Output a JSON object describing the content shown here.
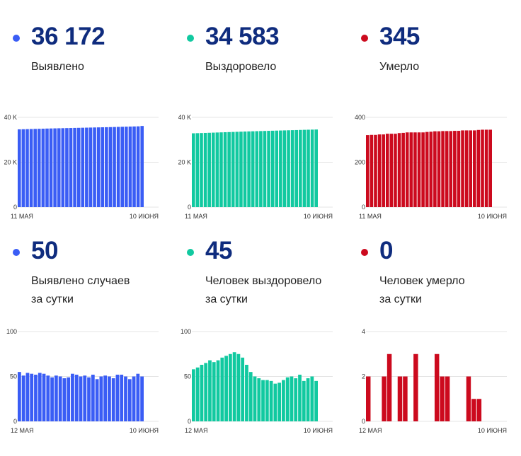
{
  "colors": {
    "blue": "#3a5df5",
    "green": "#11c9a0",
    "red": "#cc0a1e",
    "number": "#0f2c7e"
  },
  "panels": [
    {
      "value": "36 172",
      "label_line1": "Выявлено",
      "label_line2": "",
      "color": "#3a5df5",
      "chart_data": {
        "type": "bar",
        "yticks": [
          "40 K",
          "20 K",
          "0"
        ],
        "ylim": [
          0,
          40000
        ],
        "xlabel_start": "11 МАЯ",
        "xlabel_end": "10 ИЮНЯ",
        "values": [
          34660,
          34710,
          34760,
          34810,
          34860,
          34910,
          34960,
          35010,
          35060,
          35100,
          35140,
          35180,
          35220,
          35260,
          35300,
          35340,
          35380,
          35420,
          35460,
          35500,
          35540,
          35580,
          35620,
          35660,
          35700,
          35750,
          35800,
          35850,
          35900,
          35950,
          36000,
          36172
        ]
      }
    },
    {
      "value": "34 583",
      "label_line1": "Выздоровело",
      "label_line2": "",
      "color": "#11c9a0",
      "chart_data": {
        "type": "bar",
        "yticks": [
          "40 K",
          "20 K",
          "0"
        ],
        "ylim": [
          0,
          40000
        ],
        "xlabel_start": "11 МАЯ",
        "xlabel_end": "10 ИЮНЯ",
        "values": [
          32900,
          32960,
          33020,
          33080,
          33140,
          33200,
          33260,
          33320,
          33380,
          33440,
          33500,
          33560,
          33620,
          33680,
          33740,
          33800,
          33850,
          33900,
          33950,
          34000,
          34050,
          34100,
          34150,
          34200,
          34250,
          34300,
          34350,
          34400,
          34450,
          34500,
          34540,
          34583
        ]
      }
    },
    {
      "value": "345",
      "label_line1": "Умерло",
      "label_line2": "",
      "color": "#cc0a1e",
      "chart_data": {
        "type": "bar",
        "yticks": [
          "400",
          "200",
          "0"
        ],
        "ylim": [
          0,
          400
        ],
        "xlabel_start": "11 МАЯ",
        "xlabel_end": "10 ИЮНЯ",
        "values": [
          321,
          322,
          322,
          324,
          324,
          327,
          327,
          327,
          330,
          331,
          333,
          333,
          333,
          333,
          333,
          335,
          336,
          338,
          338,
          339,
          339,
          339,
          340,
          340,
          342,
          342,
          342,
          342,
          344,
          345,
          345,
          345
        ]
      }
    },
    {
      "value": "50",
      "label_line1": "Выявлено случаев",
      "label_line2": "за сутки",
      "color": "#3a5df5",
      "chart_data": {
        "type": "bar",
        "yticks": [
          "100",
          "50",
          "0"
        ],
        "ylim": [
          0,
          100
        ],
        "xlabel_start": "12 МАЯ",
        "xlabel_end": "10 ИЮНЯ",
        "values": [
          55,
          51,
          54,
          53,
          52,
          54,
          53,
          51,
          49,
          51,
          50,
          48,
          49,
          53,
          52,
          50,
          51,
          49,
          52,
          47,
          50,
          51,
          50,
          48,
          52,
          52,
          50,
          47,
          50,
          53,
          50
        ]
      }
    },
    {
      "value": "45",
      "label_line1": "Человек выздоровело",
      "label_line2": "за сутки",
      "color": "#11c9a0",
      "chart_data": {
        "type": "bar",
        "yticks": [
          "100",
          "50",
          "0"
        ],
        "ylim": [
          0,
          100
        ],
        "xlabel_start": "12 МАЯ",
        "xlabel_end": "10 ИЮНЯ",
        "values": [
          58,
          60,
          63,
          65,
          68,
          66,
          68,
          71,
          73,
          75,
          77,
          75,
          71,
          63,
          55,
          50,
          48,
          46,
          46,
          45,
          42,
          43,
          46,
          49,
          50,
          48,
          52,
          45,
          48,
          50,
          45
        ]
      }
    },
    {
      "value": "0",
      "label_line1": "Человек умерло",
      "label_line2": "за сутки",
      "color": "#cc0a1e",
      "chart_data": {
        "type": "bar",
        "yticks": [
          "4",
          "2",
          "0"
        ],
        "ylim": [
          0,
          4
        ],
        "xlabel_start": "12 МАЯ",
        "xlabel_end": "10 ИЮНЯ",
        "values": [
          2,
          0,
          0,
          2,
          3,
          0,
          2,
          2,
          0,
          3,
          0,
          0,
          0,
          3,
          2,
          2,
          0,
          0,
          0,
          2,
          1,
          1,
          0,
          0
        ]
      }
    }
  ]
}
